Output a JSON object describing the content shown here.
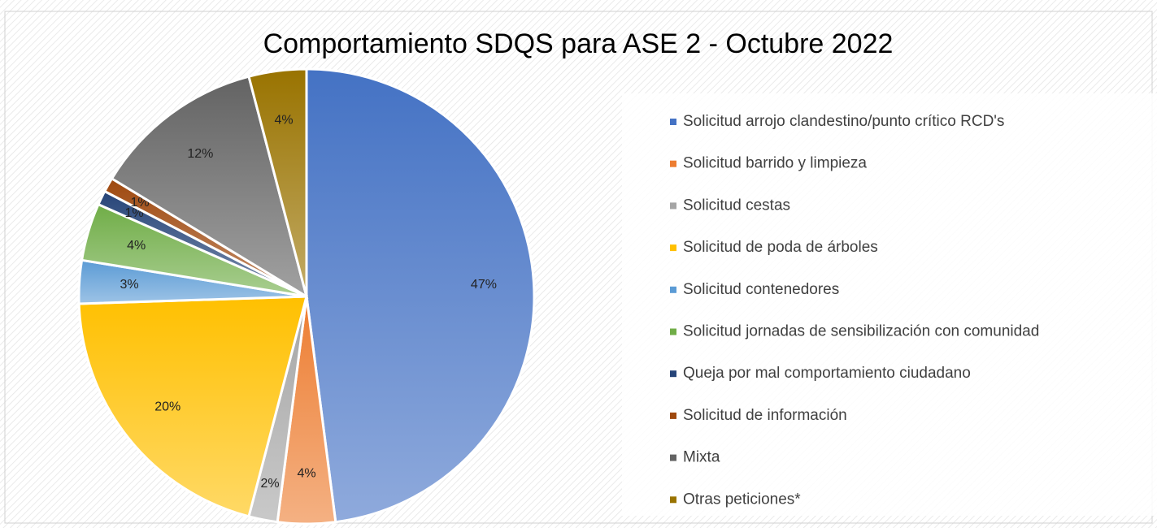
{
  "chart_data": {
    "type": "pie",
    "title": "Comportamiento SDQS para ASE 2 - Octubre 2022",
    "categories": [
      "Solicitud arrojo clandestino/punto crítico RCD's",
      "Solicitud barrido y limpieza",
      "Solicitud cestas",
      "Solicitud de poda de árboles",
      "Solicitud contenedores",
      "Solicitud jornadas de sensibilización con comunidad",
      "Queja por mal comportamiento ciudadano",
      "Solicitud de información",
      "Mixta",
      "Otras peticiones*"
    ],
    "values": [
      47,
      4,
      2,
      20,
      3,
      4,
      1,
      1,
      12,
      4
    ],
    "value_labels": [
      "47%",
      "4%",
      "2%",
      "20%",
      "3%",
      "4%",
      "1%",
      "1%",
      "12%",
      "4%"
    ],
    "colors": [
      "#4472c4",
      "#ed7d31",
      "#a5a5a5",
      "#ffc000",
      "#5b9bd5",
      "#70ad47",
      "#264478",
      "#9e480e",
      "#636363",
      "#997300"
    ],
    "legend": "right"
  }
}
